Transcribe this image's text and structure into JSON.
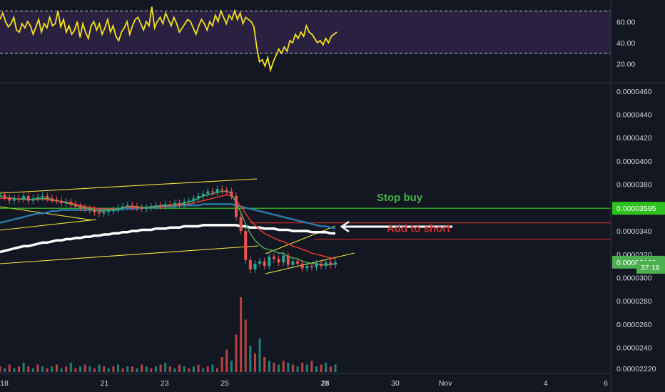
{
  "chart_data": {
    "type": "line",
    "panes": [
      {
        "name": "oscillator",
        "ylim": [
          5,
          77
        ],
        "yticks": [
          "20.00",
          "40.00",
          "60.00"
        ],
        "ytick_values": [
          20,
          40,
          60
        ],
        "bands": [
          30,
          70
        ],
        "band_fill": "#2a2141",
        "line_color": "#f5e21a",
        "values": [
          62,
          68,
          60,
          55,
          58,
          64,
          52,
          50,
          58,
          54,
          60,
          56,
          48,
          55,
          62,
          50,
          58,
          54,
          64,
          56,
          58,
          70,
          55,
          62,
          50,
          56,
          48,
          52,
          60,
          45,
          58,
          50,
          44,
          56,
          60,
          52,
          58,
          48,
          54,
          62,
          50,
          56,
          46,
          42,
          50,
          54,
          60,
          48,
          56,
          62,
          64,
          58,
          52,
          60,
          56,
          74,
          54,
          60,
          64,
          58,
          68,
          62,
          56,
          64,
          58,
          50,
          54,
          58,
          62,
          60,
          54,
          48,
          56,
          62,
          58,
          52,
          60,
          56,
          66,
          60,
          70,
          64,
          58,
          66,
          62,
          70,
          62,
          68,
          58,
          64,
          62,
          60,
          55,
          36,
          22,
          24,
          18,
          26,
          14,
          22,
          28,
          34,
          30,
          36,
          32,
          42,
          40,
          48,
          44,
          50,
          46,
          56,
          50,
          48,
          44,
          40,
          42,
          38,
          44,
          40,
          46,
          48,
          50
        ]
      },
      {
        "name": "price",
        "ylim": [
          2.19e-05,
          4.66e-05
        ],
        "yticks": [
          "0.00002220",
          "0.0000240",
          "0.0000260",
          "0.0000280",
          "0.0000300",
          "0.0000320",
          "0.0000340",
          "0.0000360",
          "0.0000380",
          "0.0000400",
          "0.0000420",
          "0.0000440",
          "0.0000460"
        ],
        "ytick_values": [
          2.22e-05,
          2.4e-05,
          2.6e-05,
          2.8e-05,
          3e-05,
          3.2e-05,
          3.4e-05,
          3.6e-05,
          3.8e-05,
          4e-05,
          4.2e-05,
          4.4e-05,
          4.6e-05
        ],
        "x_labels": [
          "18",
          "21",
          "23",
          "25",
          "28",
          "30",
          "Nov",
          "4",
          "6"
        ],
        "x_label_pos": [
          0,
          10,
          16,
          22,
          32,
          39,
          44,
          54,
          60
        ],
        "x_label_bold": [
          false,
          false,
          false,
          false,
          true,
          false,
          false,
          false,
          false
        ],
        "price_label": "0.00003132",
        "price_label_value": 3.132e-05,
        "countdown_label": "37:18",
        "stop_label": "0.00003595",
        "stop_value": 3.595e-05,
        "add_short_value": 3.47e-05,
        "add_short_value2": 3.33e-05,
        "close": [
          3.71,
          3.69,
          3.66,
          3.68,
          3.67,
          3.7,
          3.66,
          3.68,
          3.69,
          3.7,
          3.68,
          3.67,
          3.66,
          3.64,
          3.65,
          3.63,
          3.61,
          3.6,
          3.59,
          3.58,
          3.56,
          3.55,
          3.56,
          3.57,
          3.58,
          3.6,
          3.61,
          3.62,
          3.61,
          3.6,
          3.59,
          3.6,
          3.61,
          3.62,
          3.61,
          3.63,
          3.62,
          3.64,
          3.63,
          3.65,
          3.66,
          3.68,
          3.7,
          3.72,
          3.74,
          3.73,
          3.76,
          3.75,
          3.74,
          3.7,
          3.52,
          3.4,
          3.15,
          3.07,
          3.12,
          3.14,
          3.1,
          3.18,
          3.16,
          3.13,
          3.19,
          3.11,
          3.14,
          3.12,
          3.08,
          3.1,
          3.09,
          3.12,
          3.1,
          3.13,
          3.11,
          3.13
        ],
        "ema_fast": [
          3.7,
          3.69,
          3.68,
          3.68,
          3.67,
          3.68,
          3.67,
          3.67,
          3.68,
          3.68,
          3.68,
          3.67,
          3.66,
          3.65,
          3.64,
          3.63,
          3.62,
          3.61,
          3.6,
          3.59,
          3.58,
          3.57,
          3.57,
          3.58,
          3.58,
          3.59,
          3.6,
          3.61,
          3.61,
          3.61,
          3.6,
          3.6,
          3.61,
          3.61,
          3.62,
          3.62,
          3.62,
          3.63,
          3.63,
          3.64,
          3.65,
          3.66,
          3.68,
          3.7,
          3.71,
          3.72,
          3.73,
          3.74,
          3.74,
          3.72,
          3.64,
          3.56,
          3.46,
          3.38,
          3.32,
          3.28,
          3.25,
          3.24,
          3.23,
          3.21,
          3.21,
          3.18,
          3.17,
          3.16,
          3.14,
          3.13,
          3.12,
          3.12,
          3.11,
          3.11,
          3.11,
          3.12
        ],
        "ema_mid": [
          3.68,
          3.68,
          3.68,
          3.68,
          3.67,
          3.67,
          3.67,
          3.67,
          3.67,
          3.67,
          3.67,
          3.66,
          3.66,
          3.65,
          3.65,
          3.64,
          3.63,
          3.62,
          3.61,
          3.6,
          3.6,
          3.59,
          3.59,
          3.59,
          3.59,
          3.59,
          3.6,
          3.6,
          3.6,
          3.6,
          3.6,
          3.6,
          3.6,
          3.61,
          3.61,
          3.61,
          3.62,
          3.62,
          3.62,
          3.63,
          3.63,
          3.64,
          3.65,
          3.66,
          3.67,
          3.68,
          3.69,
          3.7,
          3.71,
          3.7,
          3.66,
          3.61,
          3.55,
          3.49,
          3.45,
          3.41,
          3.38,
          3.36,
          3.34,
          3.32,
          3.31,
          3.29,
          3.27,
          3.26,
          3.24,
          3.23,
          3.21,
          3.2,
          3.19,
          3.18,
          3.17,
          3.16
        ],
        "ema_blue": [
          3.47,
          3.48,
          3.49,
          3.5,
          3.51,
          3.52,
          3.53,
          3.54,
          3.55,
          3.55,
          3.56,
          3.57,
          3.57,
          3.58,
          3.58,
          3.58,
          3.58,
          3.58,
          3.58,
          3.58,
          3.58,
          3.58,
          3.58,
          3.58,
          3.58,
          3.58,
          3.59,
          3.59,
          3.59,
          3.59,
          3.6,
          3.6,
          3.6,
          3.6,
          3.61,
          3.61,
          3.61,
          3.61,
          3.62,
          3.62,
          3.62,
          3.62,
          3.62,
          3.63,
          3.63,
          3.63,
          3.63,
          3.63,
          3.63,
          3.63,
          3.62,
          3.61,
          3.6,
          3.59,
          3.58,
          3.57,
          3.56,
          3.55,
          3.54,
          3.53,
          3.52,
          3.51,
          3.5,
          3.49,
          3.48,
          3.47,
          3.46,
          3.45,
          3.44,
          3.44,
          3.43,
          3.42
        ],
        "ema_white": [
          3.22,
          3.23,
          3.24,
          3.25,
          3.26,
          3.27,
          3.27,
          3.28,
          3.29,
          3.3,
          3.3,
          3.31,
          3.32,
          3.32,
          3.33,
          3.33,
          3.34,
          3.34,
          3.35,
          3.35,
          3.36,
          3.36,
          3.37,
          3.37,
          3.38,
          3.38,
          3.39,
          3.39,
          3.4,
          3.4,
          3.41,
          3.41,
          3.41,
          3.42,
          3.42,
          3.42,
          3.43,
          3.43,
          3.43,
          3.44,
          3.44,
          3.44,
          3.44,
          3.45,
          3.45,
          3.45,
          3.45,
          3.45,
          3.45,
          3.45,
          3.45,
          3.44,
          3.44,
          3.43,
          3.43,
          3.43,
          3.42,
          3.42,
          3.42,
          3.41,
          3.41,
          3.41,
          3.4,
          3.4,
          3.4,
          3.4,
          3.39,
          3.39,
          3.39,
          3.39,
          3.38,
          3.38
        ],
        "volume": [
          3,
          2,
          4,
          2,
          3,
          5,
          3,
          2,
          4,
          3,
          2,
          3,
          4,
          2,
          3,
          5,
          2,
          3,
          4,
          3,
          2,
          4,
          3,
          2,
          3,
          4,
          2,
          3,
          3,
          2,
          4,
          3,
          2,
          3,
          4,
          5,
          3,
          2,
          4,
          3,
          2,
          3,
          4,
          2,
          3,
          4,
          2,
          8,
          12,
          6,
          20,
          40,
          28,
          14,
          10,
          18,
          8,
          6,
          5,
          4,
          6,
          5,
          4,
          3,
          5,
          4,
          6,
          3,
          4,
          5,
          3,
          4
        ],
        "volume_colors": [
          "r",
          "g",
          "r",
          "g",
          "r",
          "g",
          "r",
          "g",
          "r",
          "g",
          "r",
          "g",
          "r",
          "g",
          "r",
          "g",
          "r",
          "g",
          "r",
          "g",
          "r",
          "g",
          "r",
          "g",
          "r",
          "g",
          "r",
          "g",
          "r",
          "g",
          "r",
          "g",
          "r",
          "g",
          "r",
          "g",
          "r",
          "g",
          "r",
          "g",
          "r",
          "g",
          "r",
          "g",
          "r",
          "g",
          "r",
          "r",
          "r",
          "g",
          "r",
          "r",
          "r",
          "g",
          "r",
          "g",
          "r",
          "g",
          "r",
          "g",
          "r",
          "g",
          "r",
          "g",
          "r",
          "g",
          "r",
          "g",
          "r",
          "g",
          "r",
          "g"
        ],
        "annotations": {
          "stop_buy": "Stop buy",
          "add_to_short": "Add to short"
        },
        "colors": {
          "up": "#26a69a",
          "down": "#ef5350",
          "ema_fast": "#4caf50",
          "ema_mid": "#e53935",
          "ema_blue": "#2979a8",
          "ema_white": "#ffffff",
          "trend": "#f2e43a",
          "stop_line": "#3fd12a",
          "short_line": "#c62828",
          "stop_label_bg": "#2ec21f",
          "price_label_bg": "#4caf50"
        }
      }
    ]
  }
}
